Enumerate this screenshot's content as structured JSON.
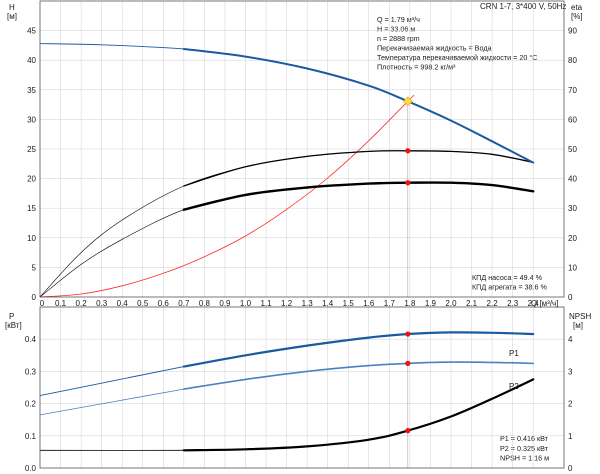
{
  "header": {
    "title": "CRN 1-7, 3*400 V, 50Hz"
  },
  "top_info": {
    "lines": [
      "Q = 1.79 м³/ч",
      "H = 33.06 м",
      "n = 2888 rpm",
      "Перекачиваемая жидкость = Вода",
      "Температура перекачиваемой жидкости = 20 °C",
      "Плотность = 998.2 кг/м³"
    ]
  },
  "efficiency_info": {
    "lines": [
      "КПД насоса = 49.4 %",
      "КПД агрегата = 38.6 %"
    ]
  },
  "bottom_info": {
    "lines": [
      "P1 = 0.416 кВт",
      "P2 = 0.325 кВт",
      "NPSH = 1.16 м"
    ]
  },
  "colors": {
    "head": "#1a5aa0",
    "p1": "#1a5aa0",
    "p2": "#4a82c0",
    "system": "#ff2a2a",
    "efficiency": "#000000",
    "duty_marker": "#ee1111",
    "duty_point": "#ffd84a"
  },
  "chart_data": [
    {
      "type": "line",
      "title": "CRN 1-7, 3*400 V, 50Hz",
      "xlabel": "Q [м³/ч]",
      "x_ticks": [
        "0",
        "0.1",
        "0.2",
        "0.3",
        "0.4",
        "0.5",
        "0.6",
        "0.7",
        "0.8",
        "0.9",
        "1.0",
        "1.1",
        "1.2",
        "1.3",
        "1.4",
        "1.5",
        "1.6",
        "1.7",
        "1.8",
        "1.9",
        "2.0",
        "2.1",
        "2.2",
        "2.3",
        "2.4"
      ],
      "xlim": [
        0,
        2.55
      ],
      "left_axis": {
        "label": "H",
        "unit": "[м]",
        "ylim": [
          0,
          50
        ],
        "ticks": [
          "0",
          "5",
          "10",
          "15",
          "20",
          "25",
          "30",
          "35",
          "40",
          "45"
        ]
      },
      "right_axis": {
        "label": "eta",
        "unit": "[%]",
        "ylim": [
          0,
          100
        ],
        "ticks": [
          "0",
          "10",
          "20",
          "30",
          "40",
          "50",
          "60",
          "70",
          "80",
          "90"
        ]
      },
      "grid": true,
      "series": [
        {
          "axis": "left",
          "x": [
            0,
            0.3,
            0.7,
            1.0,
            1.3,
            1.6,
            1.79,
            2.0,
            2.2,
            2.4
          ],
          "y": [
            42.8,
            42.6,
            41.9,
            40.6,
            38.6,
            35.7,
            33.06,
            29.8,
            26.3,
            22.7
          ]
        },
        {
          "axis": "right",
          "x": [
            0,
            0.2,
            0.4,
            0.7,
            1.0,
            1.3,
            1.6,
            1.79,
            2.0,
            2.2,
            2.4
          ],
          "y": [
            0,
            15,
            26,
            37.5,
            44,
            47.5,
            49.2,
            49.4,
            49.2,
            48.2,
            45.5
          ]
        },
        {
          "axis": "right",
          "x": [
            0,
            0.2,
            0.4,
            0.7,
            1.0,
            1.3,
            1.6,
            1.79,
            2.0,
            2.2,
            2.4
          ],
          "y": [
            0,
            11,
            19.5,
            29.5,
            34.5,
            37,
            38.3,
            38.6,
            38.6,
            37.8,
            35.7
          ]
        },
        {
          "axis": "left",
          "x": [
            0,
            0.2,
            0.4,
            0.6,
            0.8,
            1.0,
            1.2,
            1.4,
            1.6,
            1.79,
            1.82
          ],
          "y": [
            0,
            0.5,
            1.9,
            4.0,
            6.8,
            10.3,
            14.8,
            20.1,
            26.4,
            33.06,
            34.1
          ]
        }
      ],
      "duty_point": {
        "x": 1.79,
        "head": 33.06,
        "eta_pump": 49.4,
        "eta_unit": 38.6
      }
    },
    {
      "type": "line",
      "xlim": [
        0,
        2.55
      ],
      "left_axis": {
        "label": "P",
        "unit": "[кВт]",
        "ylim": [
          0,
          0.5
        ],
        "ticks": [
          "0.0",
          "0.1",
          "0.2",
          "0.3",
          "0.4"
        ]
      },
      "right_axis": {
        "label": "NPSH",
        "unit": "[м]",
        "ylim": [
          0,
          5
        ],
        "ticks": [
          "0",
          "1",
          "2",
          "3",
          "4"
        ]
      },
      "grid": true,
      "series": [
        {
          "name": "P1",
          "axis": "left",
          "x": [
            0,
            0.35,
            0.7,
            1.0,
            1.3,
            1.6,
            1.79,
            2.0,
            2.2,
            2.4
          ],
          "y": [
            0.225,
            0.27,
            0.315,
            0.35,
            0.38,
            0.405,
            0.416,
            0.421,
            0.42,
            0.416
          ]
        },
        {
          "name": "P2",
          "axis": "left",
          "x": [
            0,
            0.35,
            0.7,
            1.0,
            1.3,
            1.6,
            1.79,
            2.0,
            2.2,
            2.4
          ],
          "y": [
            0.165,
            0.205,
            0.245,
            0.275,
            0.3,
            0.318,
            0.325,
            0.329,
            0.328,
            0.325
          ]
        },
        {
          "axis": "right",
          "x": [
            0,
            0.7,
            1.0,
            1.3,
            1.6,
            1.79,
            2.0,
            2.2,
            2.4
          ],
          "y": [
            0.55,
            0.55,
            0.58,
            0.67,
            0.88,
            1.16,
            1.6,
            2.15,
            2.75
          ]
        }
      ],
      "duty_point": {
        "x": 1.79,
        "p1": 0.416,
        "p2": 0.325,
        "npsh": 1.16
      }
    }
  ]
}
